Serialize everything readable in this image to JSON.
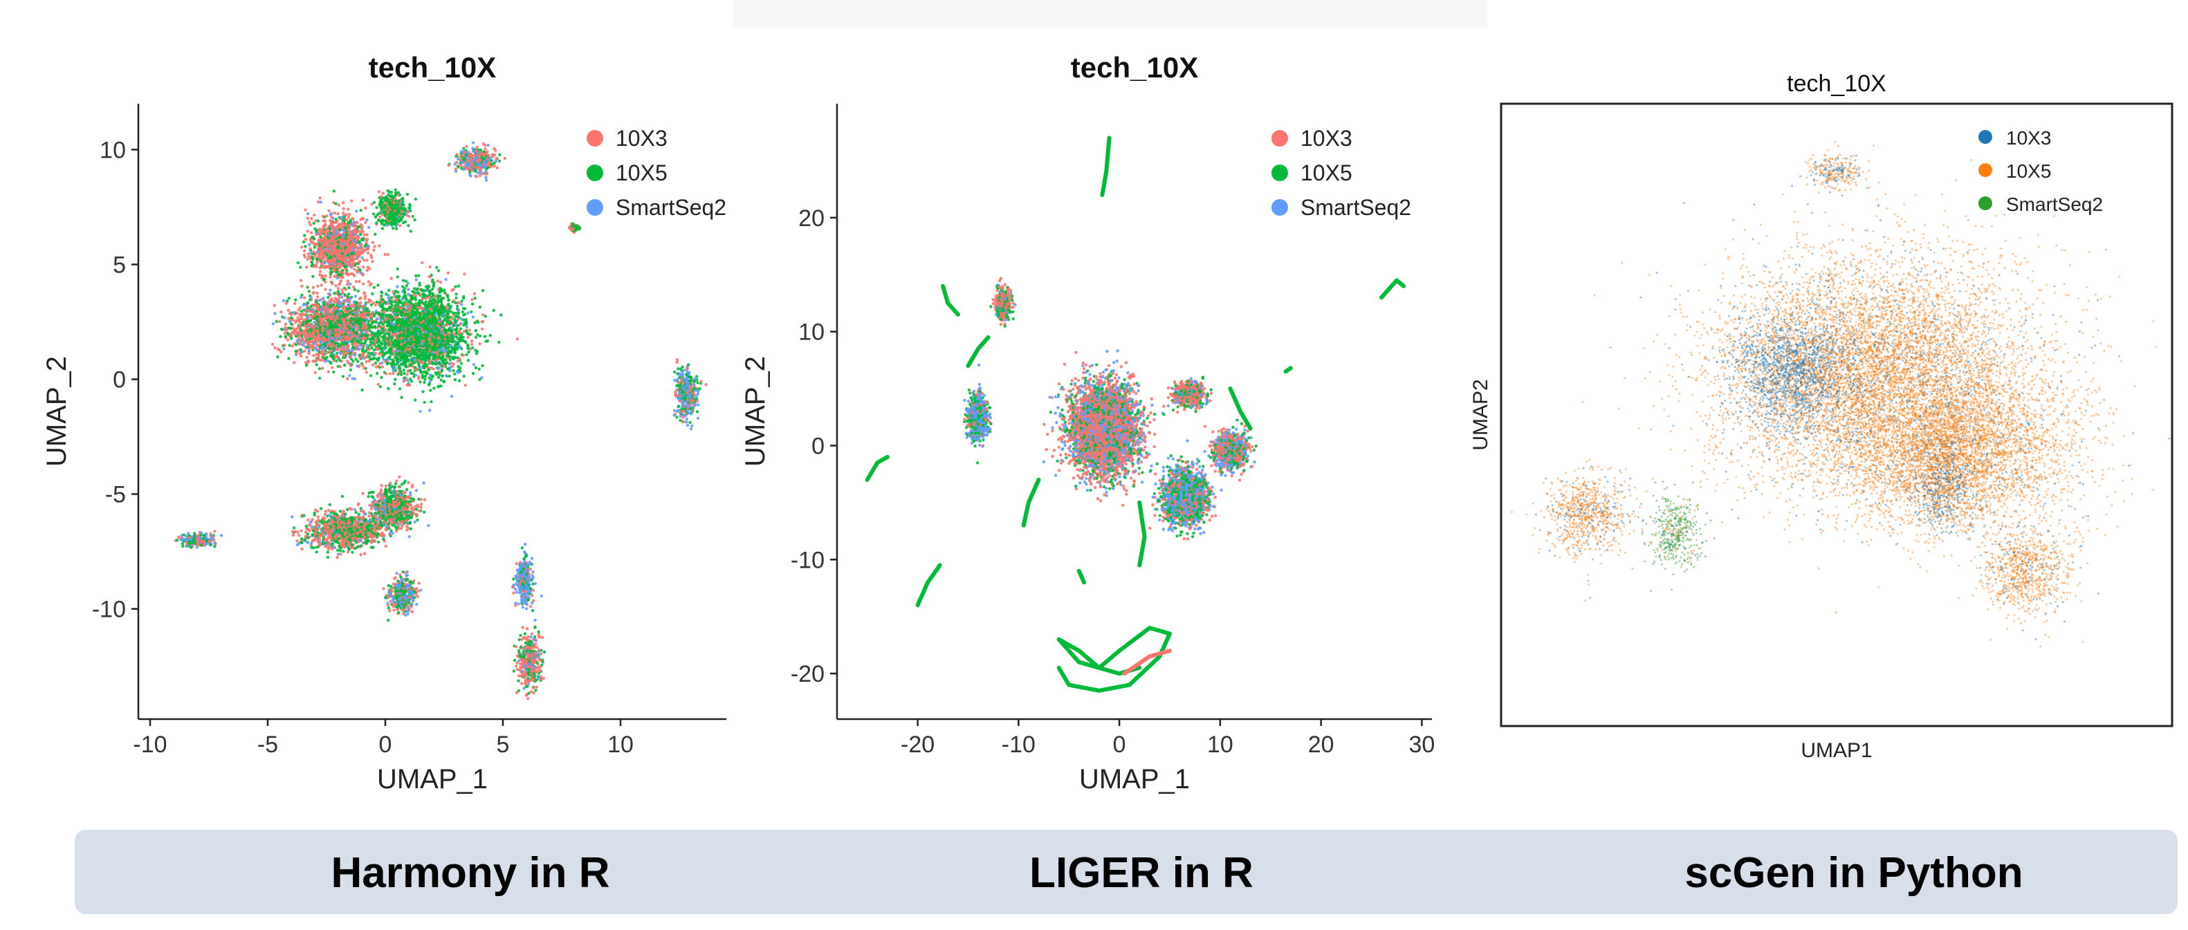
{
  "captions": [
    "Harmony in R",
    "LIGER in R",
    "scGen in Python"
  ],
  "chart_data": [
    {
      "type": "scatter",
      "title": "tech_10X",
      "xlabel": "UMAP_1",
      "ylabel": "UMAP_2",
      "xlim": [
        -10.5,
        14.5
      ],
      "ylim": [
        -14.8,
        12.0
      ],
      "xticks": [
        -10,
        -5,
        0,
        5,
        10
      ],
      "xtick_labels": [
        "-10",
        "-5",
        "0",
        "5",
        "10"
      ],
      "yticks": [
        -10,
        -5,
        0,
        5,
        10
      ],
      "ytick_labels": [
        "-10",
        "-5",
        "0",
        "5",
        "10"
      ],
      "legend_position": "top-right",
      "grid": false,
      "series": [
        {
          "name": "10X3",
          "color": "#f8766d"
        },
        {
          "name": "10X5",
          "color": "#00ba38"
        },
        {
          "name": "SmartSeq2",
          "color": "#619cff"
        }
      ],
      "clusters": [
        {
          "x": -2.2,
          "y": 2.2,
          "sx": 1.6,
          "sy": 1.3,
          "w": [
            0.55,
            0.3,
            0.15
          ]
        },
        {
          "x": -2.0,
          "y": 5.8,
          "sx": 1.1,
          "sy": 1.2,
          "w": [
            0.7,
            0.2,
            0.1
          ]
        },
        {
          "x": 1.4,
          "y": 2.0,
          "sx": 1.9,
          "sy": 1.7,
          "w": [
            0.2,
            0.7,
            0.1
          ]
        },
        {
          "x": 0.3,
          "y": 7.4,
          "sx": 0.6,
          "sy": 0.6,
          "w": [
            0.15,
            0.8,
            0.05
          ]
        },
        {
          "x": 3.9,
          "y": 9.5,
          "sx": 0.7,
          "sy": 0.5,
          "w": [
            0.4,
            0.3,
            0.3
          ]
        },
        {
          "x": 12.8,
          "y": -0.6,
          "sx": 0.4,
          "sy": 1.0,
          "w": [
            0.25,
            0.35,
            0.4
          ]
        },
        {
          "x": -1.7,
          "y": -6.6,
          "sx": 1.5,
          "sy": 0.7,
          "w": [
            0.5,
            0.4,
            0.1
          ]
        },
        {
          "x": 0.4,
          "y": -5.6,
          "sx": 0.9,
          "sy": 0.8,
          "w": [
            0.45,
            0.4,
            0.15
          ]
        },
        {
          "x": 0.7,
          "y": -9.4,
          "sx": 0.5,
          "sy": 0.7,
          "w": [
            0.35,
            0.35,
            0.3
          ]
        },
        {
          "x": -8.0,
          "y": -7.0,
          "sx": 0.7,
          "sy": 0.25,
          "w": [
            0.3,
            0.3,
            0.4
          ]
        },
        {
          "x": 5.9,
          "y": -8.8,
          "sx": 0.35,
          "sy": 0.9,
          "w": [
            0.3,
            0.2,
            0.5
          ]
        },
        {
          "x": 6.1,
          "y": -12.3,
          "sx": 0.45,
          "sy": 1.0,
          "w": [
            0.55,
            0.3,
            0.15
          ]
        },
        {
          "x": 8.0,
          "y": 6.6,
          "sx": 0.15,
          "sy": 0.15,
          "w": [
            0.5,
            0.5,
            0.0
          ]
        }
      ]
    },
    {
      "type": "scatter",
      "title": "tech_10X",
      "xlabel": "UMAP_1",
      "ylabel": "UMAP_2",
      "xlim": [
        -28,
        31
      ],
      "ylim": [
        -24,
        30
      ],
      "xticks": [
        -20,
        -10,
        0,
        10,
        20,
        30
      ],
      "xtick_labels": [
        "-20",
        "-10",
        "0",
        "10",
        "20",
        "30"
      ],
      "yticks": [
        -20,
        -10,
        0,
        10,
        20
      ],
      "ytick_labels": [
        "-20",
        "-10",
        "0",
        "10",
        "20"
      ],
      "legend_position": "top-right",
      "grid": false,
      "series": [
        {
          "name": "10X3",
          "color": "#f8766d"
        },
        {
          "name": "10X5",
          "color": "#00ba38"
        },
        {
          "name": "SmartSeq2",
          "color": "#619cff"
        }
      ],
      "clusters": [
        {
          "x": -1.5,
          "y": 1.5,
          "sx": 3.0,
          "sy": 3.6,
          "w": [
            0.55,
            0.2,
            0.25
          ]
        },
        {
          "x": 6.5,
          "y": -4.5,
          "sx": 2.0,
          "sy": 2.2,
          "w": [
            0.3,
            0.3,
            0.4
          ]
        },
        {
          "x": 11.0,
          "y": -0.5,
          "sx": 1.5,
          "sy": 1.4,
          "w": [
            0.45,
            0.25,
            0.3
          ]
        },
        {
          "x": 7.0,
          "y": 4.5,
          "sx": 1.4,
          "sy": 1.0,
          "w": [
            0.6,
            0.25,
            0.15
          ]
        },
        {
          "x": -14.0,
          "y": 2.5,
          "sx": 0.9,
          "sy": 1.9,
          "w": [
            0.2,
            0.3,
            0.5
          ]
        },
        {
          "x": -11.5,
          "y": 12.5,
          "sx": 0.7,
          "sy": 1.2,
          "w": [
            0.5,
            0.4,
            0.1
          ]
        }
      ],
      "curves": [
        {
          "color": "#00ba38",
          "points": [
            [
              -1.0,
              27.0
            ],
            [
              -1.3,
              24.0
            ],
            [
              -1.7,
              22.0
            ]
          ]
        },
        {
          "color": "#00ba38",
          "points": [
            [
              26.0,
              13.0
            ],
            [
              27.5,
              14.5
            ],
            [
              28.2,
              14.0
            ]
          ]
        },
        {
          "color": "#00ba38",
          "points": [
            [
              -25.0,
              -3.0
            ],
            [
              -24.0,
              -1.5
            ],
            [
              -23.0,
              -1.0
            ]
          ]
        },
        {
          "color": "#00ba38",
          "points": [
            [
              -20.0,
              -14.0
            ],
            [
              -19.0,
              -12.0
            ],
            [
              -17.8,
              -10.5
            ]
          ]
        },
        {
          "color": "#00ba38",
          "points": [
            [
              -17.5,
              14.0
            ],
            [
              -17.0,
              12.5
            ],
            [
              -16.0,
              11.5
            ]
          ]
        },
        {
          "color": "#00ba38",
          "points": [
            [
              -6.0,
              -19.5
            ],
            [
              -5.0,
              -21.0
            ],
            [
              -2.0,
              -21.5
            ],
            [
              1.0,
              -21.0
            ],
            [
              4.0,
              -18.5
            ],
            [
              5.0,
              -16.5
            ],
            [
              3.0,
              -16.0
            ],
            [
              0.0,
              -18.0
            ],
            [
              -2.0,
              -19.5
            ],
            [
              -4.0,
              -18.0
            ],
            [
              -6.0,
              -17.0
            ],
            [
              -4.0,
              -19.0
            ],
            [
              0.0,
              -20.0
            ],
            [
              2.0,
              -19.5
            ]
          ]
        },
        {
          "color": "#f8766d",
          "points": [
            [
              0.5,
              -20.0
            ],
            [
              3.0,
              -18.5
            ],
            [
              5.0,
              -18.0
            ]
          ]
        },
        {
          "color": "#00ba38",
          "points": [
            [
              2.0,
              -5.0
            ],
            [
              2.5,
              -8.0
            ],
            [
              2.0,
              -10.5
            ]
          ]
        },
        {
          "color": "#00ba38",
          "points": [
            [
              -8.0,
              -3.0
            ],
            [
              -9.0,
              -5.0
            ],
            [
              -9.5,
              -7.0
            ]
          ]
        },
        {
          "color": "#00ba38",
          "points": [
            [
              11.0,
              5.0
            ],
            [
              12.0,
              3.0
            ],
            [
              13.0,
              1.5
            ]
          ]
        },
        {
          "color": "#00ba38",
          "points": [
            [
              -15.0,
              7.0
            ],
            [
              -14.0,
              8.5
            ],
            [
              -13.0,
              9.5
            ]
          ]
        },
        {
          "color": "#00ba38",
          "points": [
            [
              16.5,
              6.5
            ],
            [
              17.0,
              6.8
            ]
          ]
        },
        {
          "color": "#00ba38",
          "points": [
            [
              -4.0,
              -11.0
            ],
            [
              -3.5,
              -12.0
            ]
          ]
        }
      ]
    },
    {
      "type": "scatter",
      "title": "tech_10X",
      "xlabel": "UMAP1",
      "ylabel": "UMAP2",
      "xlim": [
        0,
        100
      ],
      "ylim": [
        0,
        100
      ],
      "legend_position": "top-right",
      "grid": false,
      "series": [
        {
          "name": "10X3",
          "color": "#1f77b4"
        },
        {
          "name": "10X5",
          "color": "#ff7f0e"
        },
        {
          "name": "SmartSeq2",
          "color": "#2ca02c"
        }
      ],
      "clusters": [
        {
          "x": 56.0,
          "y": 57.0,
          "sx": 21.0,
          "sy": 17.0,
          "w": [
            0.15,
            0.85,
            0.0
          ]
        },
        {
          "x": 43.0,
          "y": 57.0,
          "sx": 8.0,
          "sy": 8.5,
          "w": [
            0.85,
            0.15,
            0.0
          ]
        },
        {
          "x": 68.0,
          "y": 44.0,
          "sx": 16.0,
          "sy": 11.0,
          "w": [
            0.1,
            0.9,
            0.0
          ]
        },
        {
          "x": 12.5,
          "y": 34.0,
          "sx": 5.5,
          "sy": 6.0,
          "w": [
            0.2,
            0.8,
            0.0
          ]
        },
        {
          "x": 26.0,
          "y": 31.0,
          "sx": 3.5,
          "sy": 5.0,
          "w": [
            0.1,
            0.15,
            0.75
          ]
        },
        {
          "x": 50.0,
          "y": 89.0,
          "sx": 4.0,
          "sy": 2.5,
          "w": [
            0.3,
            0.7,
            0.0
          ]
        },
        {
          "x": 78.0,
          "y": 25.0,
          "sx": 6.0,
          "sy": 6.0,
          "w": [
            0.15,
            0.85,
            0.0
          ]
        },
        {
          "x": 66.0,
          "y": 38.0,
          "sx": 4.0,
          "sy": 6.0,
          "w": [
            0.6,
            0.4,
            0.0
          ]
        }
      ]
    }
  ]
}
